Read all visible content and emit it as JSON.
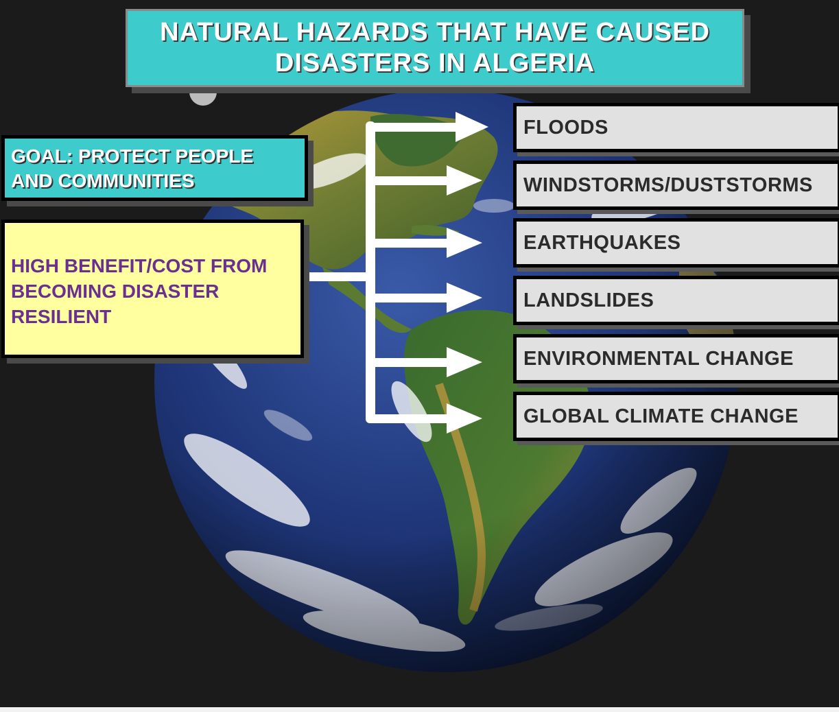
{
  "title": {
    "line1": "NATURAL HAZARDS THAT HAVE CAUSED",
    "line2": "DISASTERS IN ALGERIA"
  },
  "goal": {
    "text": "GOAL: PROTECT  PEOPLE\nAND COMMUNITIES"
  },
  "benefit": {
    "text": "HIGH BENEFIT/COST FROM\nBECOMING DISASTER\nRESILIENT"
  },
  "hazards": [
    "FLOODS",
    "WINDSTORMS/DUSTSTORMS",
    "EARTHQUAKES",
    "LANDSLIDES",
    "ENVIRONMENTAL CHANGE",
    "GLOBAL CLIMATE CHANGE"
  ],
  "colors": {
    "background": "#1b1b1b",
    "accent_teal": "#3ecbcb",
    "benefit_fill": "#ffffa0",
    "benefit_text": "#6a2f8f",
    "hazard_fill": "#e1e1e1",
    "arrow": "#ffffff"
  },
  "background_image": "earth-globe-americas"
}
